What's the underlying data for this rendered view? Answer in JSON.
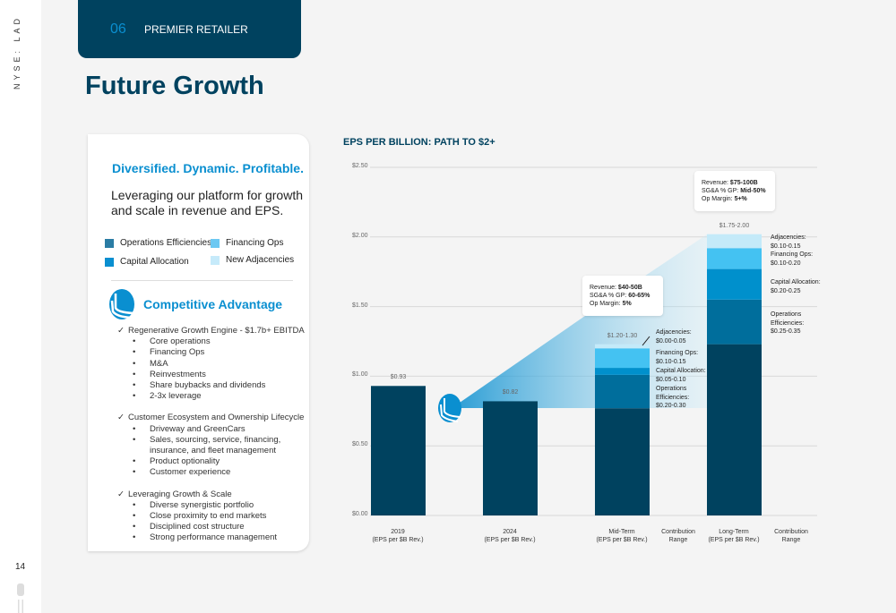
{
  "side": {
    "ticker": "NYSE: LAD",
    "page_number": "14"
  },
  "header": {
    "section_number": "06",
    "section_title": "PREMIER RETAILER",
    "page_title": "Future Growth"
  },
  "card": {
    "tagline": "Diversified. Dynamic. Profitable.",
    "lead": "Leveraging our platform for growth and scale in revenue and EPS.",
    "legend": [
      {
        "label": "Operations Efficiencies",
        "color": "#2a7ca4"
      },
      {
        "label": "Financing Ops",
        "color": "#6cc8f2"
      },
      {
        "label": "Capital Allocation",
        "color": "#0a8fd0"
      },
      {
        "label": "New Adjacencies",
        "color": "#c6eafa"
      }
    ],
    "competitive_title": "Competitive Advantage",
    "groups": [
      {
        "title": "Regenerative Growth Engine  - $1.7b+ EBITDA",
        "items": [
          "Core operations",
          "Financing Ops",
          "M&A",
          "Reinvestments",
          "Share buybacks and dividends",
          "2-3x leverage"
        ]
      },
      {
        "title": "Customer Ecosystem and Ownership Lifecycle",
        "items": [
          "Driveway and GreenCars",
          "Sales, sourcing, service, financing, insurance, and fleet management",
          "Product optionality",
          "Customer experience"
        ]
      },
      {
        "title": "Leveraging Growth & Scale",
        "items": [
          "Diverse synergistic portfolio",
          "Close proximity to end markets",
          "Disciplined cost structure",
          "Strong performance management"
        ]
      }
    ]
  },
  "chart_data": {
    "type": "bar",
    "title": "EPS PER BILLION: PATH TO $2+",
    "ylim": [
      0,
      2.5
    ],
    "yticks": [
      "$0.00",
      "$0.50",
      "$1.00",
      "$1.50",
      "$2.00",
      "$2.50"
    ],
    "grid": true,
    "categories": [
      "2019\n(EPS per $B Rev.)",
      "2024\n(EPS per $B Rev.)",
      "Mid-Term\n(EPS per $B Rev.)",
      "Contribution\nRange",
      "Long-Term\n(EPS per $B Rev.)",
      "Contribution\nRange"
    ],
    "colors": {
      "base": "#00425f",
      "ops": "#006e9c",
      "cap": "#0090cc",
      "fin": "#44c2f2",
      "adj": "#c4eaf9"
    },
    "bars": [
      {
        "category": "2019",
        "label": "$0.93",
        "segments": [
          {
            "key": "base",
            "value": 0.93
          }
        ]
      },
      {
        "category": "2024",
        "label": "$0.82",
        "segments": [
          {
            "key": "base",
            "value": 0.82
          }
        ]
      },
      {
        "category": "Mid-Term",
        "label": "$1.20-1.30",
        "segments": [
          {
            "key": "base",
            "value": 0.77
          },
          {
            "key": "ops",
            "value": 0.24
          },
          {
            "key": "cap",
            "value": 0.05
          },
          {
            "key": "fin",
            "value": 0.14
          },
          {
            "key": "adj",
            "value": 0.03
          }
        ]
      },
      {
        "category": "Long-Term",
        "label": "$1.75-2.00",
        "segments": [
          {
            "key": "base",
            "value": 1.23
          },
          {
            "key": "ops",
            "value": 0.32
          },
          {
            "key": "cap",
            "value": 0.22
          },
          {
            "key": "fin",
            "value": 0.15
          },
          {
            "key": "adj",
            "value": 0.1
          }
        ]
      }
    ],
    "mid_notes": [
      "Adjacencies:\n$0.00-0.05",
      "Financing Ops:\n$0.10-0.15",
      "Capital Allocation:\n$0.05-0.10",
      "Operations\nEfficiencies:\n$0.20-0.30"
    ],
    "long_notes": [
      "Adjacencies:\n$0.10-0.15",
      "Financing Ops:\n$0.10-0.20",
      "Capital Allocation:\n$0.20-0.25",
      "Operations\nEfficiencies:\n$0.25-0.35"
    ],
    "mid_tooltip": [
      [
        "Revenue: ",
        "$40-50B"
      ],
      [
        "SG&A % GP: ",
        "60-65%"
      ],
      [
        "Op Margin: ",
        "5%"
      ]
    ],
    "long_tooltip": [
      [
        "Revenue: ",
        "$75-100B"
      ],
      [
        "SG&A % GP: ",
        "Mid-50%"
      ],
      [
        "Op Margin: ",
        "5+%"
      ]
    ]
  }
}
